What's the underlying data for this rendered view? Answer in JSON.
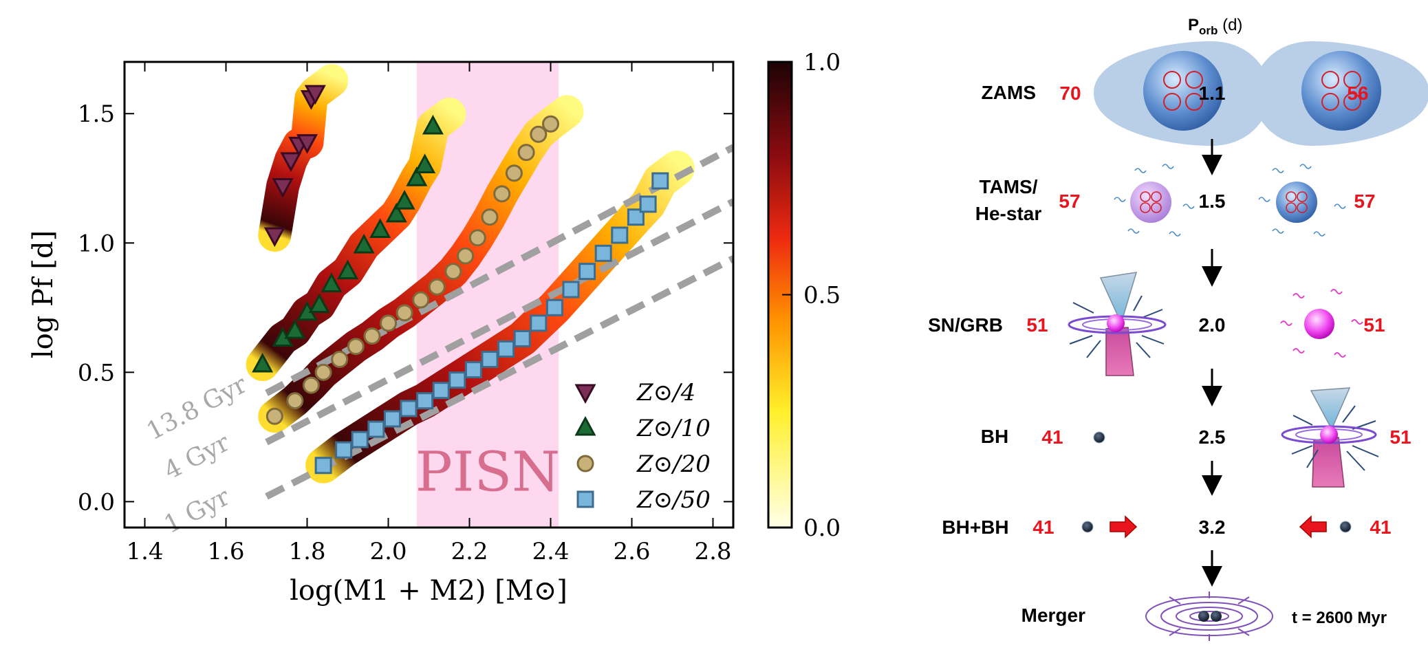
{
  "chart_data": {
    "type": "scatter",
    "xlabel": "log(M1 + M2) [M⊙]",
    "ylabel": "log Pf [d]",
    "xlim": [
      1.35,
      2.85
    ],
    "ylim": [
      -0.1,
      1.7
    ],
    "xticks": [
      "1.4",
      "1.6",
      "1.8",
      "2.0",
      "2.2",
      "2.4",
      "2.6",
      "2.8"
    ],
    "yticks": [
      "0.0",
      "0.5",
      "1.0",
      "1.5"
    ],
    "grid": false,
    "legend_position": "lower-right",
    "colorbar": {
      "min": 0.0,
      "max": 1.0,
      "ticks": [
        "0.0",
        "0.5",
        "1.0"
      ],
      "colormap": "hot_r"
    },
    "shaded_region": {
      "label": "PISN",
      "x_range": [
        2.07,
        2.42
      ],
      "color": "#fdd8ee"
    },
    "isochrones": [
      {
        "label": "13.8 Gyr",
        "x": [
          1.7,
          2.85
        ],
        "y": [
          0.42,
          1.37
        ]
      },
      {
        "label": "4 Gyr",
        "x": [
          1.7,
          2.85
        ],
        "y": [
          0.23,
          1.16
        ]
      },
      {
        "label": "1 Gyr",
        "x": [
          1.7,
          2.85
        ],
        "y": [
          0.02,
          0.94
        ]
      }
    ],
    "series": [
      {
        "name": "Z⊙/4",
        "marker": "triangle-down",
        "color": "#7b2f56",
        "x": [
          1.72,
          1.74,
          1.76,
          1.78,
          1.8,
          1.81,
          1.82
        ],
        "y": [
          1.03,
          1.22,
          1.32,
          1.38,
          1.39,
          1.56,
          1.58
        ]
      },
      {
        "name": "Z⊙/10",
        "marker": "triangle-up",
        "color": "#1d6b34",
        "x": [
          1.69,
          1.74,
          1.77,
          1.8,
          1.83,
          1.86,
          1.9,
          1.94,
          1.98,
          2.02,
          2.04,
          2.07,
          2.09,
          2.11
        ],
        "y": [
          0.53,
          0.63,
          0.66,
          0.73,
          0.76,
          0.84,
          0.89,
          0.99,
          1.05,
          1.11,
          1.16,
          1.25,
          1.3,
          1.45
        ]
      },
      {
        "name": "Z⊙/20",
        "marker": "circle",
        "color": "#c8b27a",
        "x": [
          1.72,
          1.77,
          1.81,
          1.84,
          1.88,
          1.92,
          1.96,
          2.0,
          2.04,
          2.08,
          2.12,
          2.16,
          2.19,
          2.22,
          2.25,
          2.28,
          2.31,
          2.34,
          2.37,
          2.4
        ],
        "y": [
          0.33,
          0.39,
          0.45,
          0.5,
          0.55,
          0.6,
          0.64,
          0.69,
          0.73,
          0.78,
          0.83,
          0.89,
          0.95,
          1.02,
          1.1,
          1.19,
          1.27,
          1.35,
          1.42,
          1.46
        ]
      },
      {
        "name": "Z⊙/50",
        "marker": "square",
        "color": "#7ab6dc",
        "x": [
          1.84,
          1.89,
          1.93,
          1.97,
          2.01,
          2.05,
          2.09,
          2.13,
          2.17,
          2.21,
          2.25,
          2.29,
          2.33,
          2.37,
          2.41,
          2.45,
          2.49,
          2.53,
          2.57,
          2.61,
          2.64,
          2.67
        ],
        "y": [
          0.14,
          0.2,
          0.24,
          0.28,
          0.32,
          0.36,
          0.39,
          0.43,
          0.47,
          0.51,
          0.55,
          0.59,
          0.63,
          0.69,
          0.75,
          0.82,
          0.89,
          0.96,
          1.03,
          1.1,
          1.15,
          1.24
        ]
      }
    ]
  },
  "diagram": {
    "header": "Porb (d)",
    "header_main": "P",
    "header_sub": "orb",
    "header_unit": " (d)",
    "stages": [
      {
        "name": "ZAMS",
        "m1": "70",
        "period": "1.1",
        "m2": "56"
      },
      {
        "name": "TAMS/",
        "name2": "He-star",
        "m1": "57",
        "period": "1.5",
        "m2": "57"
      },
      {
        "name": "SN/GRB",
        "m1": "51",
        "period": "2.0",
        "m2": "51"
      },
      {
        "name": "BH",
        "m1": "41",
        "period": "2.5",
        "m2": "51"
      },
      {
        "name": "BH+BH",
        "m1": "41",
        "period": "3.2",
        "m2": "41"
      },
      {
        "name": "Merger",
        "time": "t = 2600 Myr"
      }
    ]
  }
}
